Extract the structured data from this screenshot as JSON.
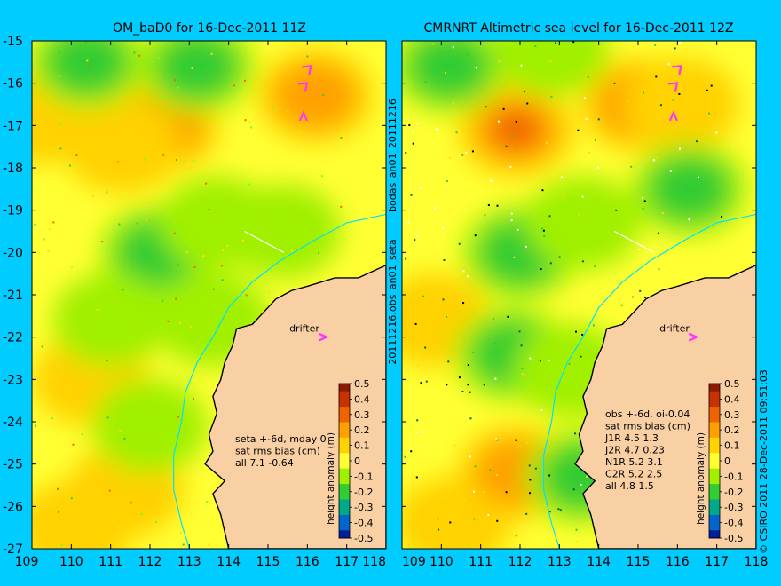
{
  "colors": {
    "background": "#00CCFF",
    "land": "#F9CFA4",
    "coast": "#000000",
    "bathy": "#00E0FF",
    "track": "#FFFFFF",
    "drifter": "#FF33FF"
  },
  "left_panel": {
    "title": "OM_baD0 for 16-Dec-2011 11Z",
    "stats": [
      "seta +-6d, mday 0",
      "sat rms bias (cm)",
      "all 7.1 -0.64"
    ]
  },
  "right_panel": {
    "title": "CMRNRT Altimetric sea level  for 16-Dec-2011 12Z",
    "stats": [
      "obs +-6d, oi-0.04",
      "sat rms bias (cm)",
      "J1R   4.5  1.3",
      "J2R   4.7  0.23",
      "N1R   5.2  3.1",
      "C2R   5.2  2.5",
      "all 4.8  1.5"
    ]
  },
  "drifter_label": "drifter",
  "axes": {
    "x_ticks": [
      "109",
      "110",
      "111",
      "112",
      "113",
      "114",
      "115",
      "116",
      "117",
      "118"
    ],
    "y_ticks": [
      "-15",
      "-16",
      "-17",
      "-18",
      "-19",
      "-20",
      "-21",
      "-22",
      "-23",
      "-24",
      "-25",
      "-26",
      "-27"
    ]
  },
  "side_text": {
    "vertical_left": "20111216.obs_an01_seta",
    "vertical_left2": "bodas_an01_20111216",
    "vertical_right": "© CSIRO 2011   28-Dec-2011 09:51:03"
  },
  "colorbar": {
    "label": "height anomaly (m)",
    "ticks": [
      "0.5",
      "0.4",
      "0.3",
      "0.2",
      "0.1",
      "0",
      "-0.1",
      "-0.2",
      "-0.3",
      "-0.4",
      "-0.5"
    ],
    "colors": [
      "#8B1A00",
      "#C83200",
      "#F06400",
      "#FFA000",
      "#FFD200",
      "#FFFF33",
      "#A0F000",
      "#33CC33",
      "#00AA88",
      "#0066CC",
      "#001E96"
    ]
  },
  "chart_data": {
    "type": "heatmap",
    "maps": [
      {
        "name": "OM_baD0",
        "blobs": [
          {
            "lon": 112.3,
            "lat": -17.0,
            "level": 0.2
          },
          {
            "lon": 111.3,
            "lat": -17.5,
            "level": 0.15
          },
          {
            "lon": 116.2,
            "lat": -16.3,
            "level": 0.2
          },
          {
            "lon": 109.3,
            "lat": -16.8,
            "level": 0.1
          },
          {
            "lon": 110.5,
            "lat": -23.0,
            "level": 0.1
          },
          {
            "lon": 110.1,
            "lat": -26.5,
            "level": 0.15
          },
          {
            "lon": 111.4,
            "lat": -25.6,
            "level": 0.1
          },
          {
            "lon": 112.2,
            "lat": -20.0,
            "level": -0.15
          },
          {
            "lon": 113.7,
            "lat": -19.3,
            "level": -0.1
          },
          {
            "lon": 115.4,
            "lat": -19.5,
            "level": -0.1
          },
          {
            "lon": 110.4,
            "lat": -15.5,
            "level": -0.15
          },
          {
            "lon": 113.2,
            "lat": -15.6,
            "level": -0.15
          },
          {
            "lon": 111.0,
            "lat": -21.6,
            "level": -0.1
          },
          {
            "lon": 112.0,
            "lat": -24.1,
            "level": -0.1
          },
          {
            "lon": 113.6,
            "lat": -21.6,
            "level": -0.1
          }
        ]
      },
      {
        "name": "CMRNRT",
        "blobs": [
          {
            "lon": 111.9,
            "lat": -17.1,
            "level": 0.35
          },
          {
            "lon": 115.0,
            "lat": -16.5,
            "level": 0.25
          },
          {
            "lon": 116.1,
            "lat": -16.5,
            "level": 0.15
          },
          {
            "lon": 109.8,
            "lat": -21.6,
            "level": 0.1
          },
          {
            "lon": 110.3,
            "lat": -26.4,
            "level": 0.15
          },
          {
            "lon": 111.9,
            "lat": -25.2,
            "level": 0.2
          },
          {
            "lon": 112.0,
            "lat": -20.0,
            "level": -0.15
          },
          {
            "lon": 110.2,
            "lat": -15.6,
            "level": -0.15
          },
          {
            "lon": 112.8,
            "lat": -15.2,
            "level": -0.1
          },
          {
            "lon": 116.3,
            "lat": -18.5,
            "level": -0.15
          },
          {
            "lon": 113.6,
            "lat": -19.3,
            "level": -0.1
          },
          {
            "lon": 111.8,
            "lat": -22.4,
            "level": -0.15
          },
          {
            "lon": 113.3,
            "lat": -22.8,
            "level": -0.1
          },
          {
            "lon": 113.6,
            "lat": -25.3,
            "level": -0.15
          }
        ]
      }
    ],
    "coastline": [
      [
        118.0,
        -20.3
      ],
      [
        117.3,
        -20.6
      ],
      [
        116.7,
        -20.6
      ],
      [
        116.0,
        -20.8
      ],
      [
        115.6,
        -20.9
      ],
      [
        115.2,
        -21.1
      ],
      [
        114.9,
        -21.4
      ],
      [
        114.6,
        -21.7
      ],
      [
        114.2,
        -21.8
      ],
      [
        114.1,
        -22.2
      ],
      [
        113.9,
        -22.6
      ],
      [
        113.8,
        -23.0
      ],
      [
        113.6,
        -23.4
      ],
      [
        113.7,
        -23.8
      ],
      [
        113.5,
        -24.3
      ],
      [
        113.6,
        -24.7
      ],
      [
        113.4,
        -25.0
      ],
      [
        113.9,
        -25.4
      ],
      [
        113.6,
        -25.7
      ],
      [
        113.8,
        -26.2
      ],
      [
        113.9,
        -26.6
      ],
      [
        114.0,
        -27.0
      ]
    ],
    "bathymetry_contour": [
      [
        118.0,
        -19.1
      ],
      [
        117.0,
        -19.3
      ],
      [
        116.2,
        -19.7
      ],
      [
        115.3,
        -20.2
      ],
      [
        114.6,
        -20.7
      ],
      [
        114.0,
        -21.3
      ],
      [
        113.6,
        -22.0
      ],
      [
        113.2,
        -22.6
      ],
      [
        112.9,
        -23.3
      ],
      [
        112.8,
        -24.0
      ],
      [
        112.6,
        -24.8
      ],
      [
        112.6,
        -25.6
      ],
      [
        112.8,
        -26.4
      ],
      [
        113.0,
        -27.0
      ]
    ],
    "satellite_track": [
      [
        114.4,
        -19.5
      ],
      [
        115.4,
        -20.0
      ]
    ],
    "drifters": [
      {
        "lon": 116.0,
        "lat": -15.7,
        "dir": "ne"
      },
      {
        "lon": 115.9,
        "lat": -16.1,
        "dir": "ne"
      },
      {
        "lon": 115.9,
        "lat": -16.8,
        "dir": "n"
      },
      {
        "lon": 116.4,
        "lat": -22.0,
        "dir": "e"
      }
    ],
    "xlim": [
      109,
      118
    ],
    "ylim": [
      -27,
      -15
    ],
    "clim": [
      -0.5,
      0.5
    ]
  }
}
